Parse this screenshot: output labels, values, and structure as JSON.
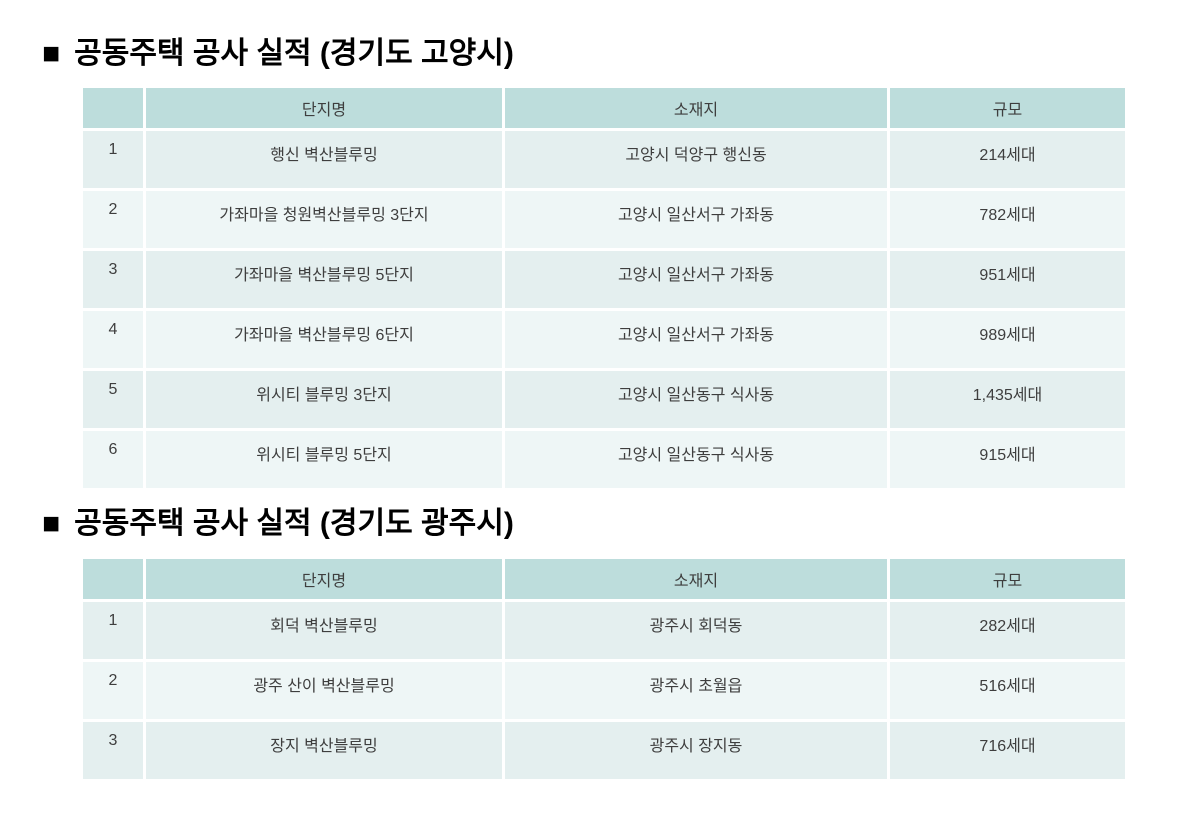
{
  "colors": {
    "header_bg": "#bddddc",
    "row_odd_bg": "#e4efef",
    "row_even_bg": "#eef6f6",
    "cell_text": "#3e3e3e",
    "title_text": "#000000"
  },
  "sections": [
    {
      "marker": "■",
      "title": "공동주택 공사 실적 (경기도 고양시)",
      "columns": {
        "no": "",
        "complex": "단지명",
        "location": "소재지",
        "scale": "규모"
      },
      "rows": [
        {
          "no": "1",
          "complex": "행신 벽산블루밍",
          "location": "고양시 덕양구 행신동",
          "scale": "214세대"
        },
        {
          "no": "2",
          "complex": "가좌마을 청원벽산블루밍 3단지",
          "location": "고양시 일산서구 가좌동",
          "scale": "782세대"
        },
        {
          "no": "3",
          "complex": "가좌마을 벽산블루밍 5단지",
          "location": "고양시 일산서구 가좌동",
          "scale": "951세대"
        },
        {
          "no": "4",
          "complex": "가좌마을 벽산블루밍 6단지",
          "location": "고양시 일산서구 가좌동",
          "scale": "989세대"
        },
        {
          "no": "5",
          "complex": "위시티 블루밍 3단지",
          "location": "고양시 일산동구 식사동",
          "scale": "1,435세대"
        },
        {
          "no": "6",
          "complex": "위시티 블루밍 5단지",
          "location": "고양시 일산동구 식사동",
          "scale": "915세대"
        }
      ]
    },
    {
      "marker": "■",
      "title": "공동주택 공사 실적 (경기도 광주시)",
      "columns": {
        "no": "",
        "complex": "단지명",
        "location": "소재지",
        "scale": "규모"
      },
      "rows": [
        {
          "no": "1",
          "complex": "회덕 벽산블루밍",
          "location": "광주시 회덕동",
          "scale": "282세대"
        },
        {
          "no": "2",
          "complex": "광주 산이 벽산블루밍",
          "location": "광주시 초월읍",
          "scale": "516세대"
        },
        {
          "no": "3",
          "complex": "장지 벽산블루밍",
          "location": "광주시 장지동",
          "scale": "716세대"
        }
      ]
    }
  ]
}
